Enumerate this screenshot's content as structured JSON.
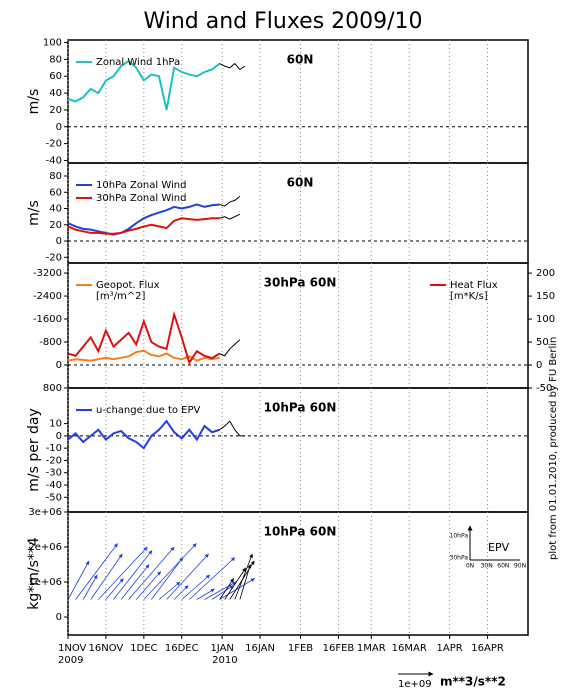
{
  "title": "Wind and Fluxes 2009/10",
  "footnote": "plot from 01.01.2010, produced by FU Berlin",
  "xaxis": {
    "xlim": [
      0,
      182
    ],
    "xticks": [
      {
        "value": 0,
        "label": "1NOV"
      },
      {
        "value": 15,
        "label": "16NOV"
      },
      {
        "value": 30,
        "label": "1DEC"
      },
      {
        "value": 45,
        "label": "16DEC"
      },
      {
        "value": 61,
        "label": "1JAN"
      },
      {
        "value": 76,
        "label": "16JAN"
      },
      {
        "value": 92,
        "label": "1FEB"
      },
      {
        "value": 107,
        "label": "16FEB"
      },
      {
        "value": 120,
        "label": "1MAR"
      },
      {
        "value": 135,
        "label": "16MAR"
      },
      {
        "value": 151,
        "label": "1APR"
      },
      {
        "value": 166,
        "label": "16APR"
      }
    ],
    "year_labels": [
      {
        "value": 0,
        "label": "2009"
      },
      {
        "value": 61,
        "label": "2010"
      }
    ]
  },
  "chart_data": [
    {
      "type": "line",
      "label": "60N",
      "ylabel": "m/s",
      "ylim": [
        -43,
        103
      ],
      "yticks": [
        -40,
        -20,
        0,
        20,
        40,
        60,
        80,
        100
      ],
      "zero_line": true,
      "series": [
        {
          "name": "Zonal Wind 1hPa",
          "color": "#20c0c0",
          "x": [
            0,
            3,
            6,
            9,
            12,
            15,
            18,
            21,
            24,
            27,
            30,
            33,
            36,
            39,
            42,
            45,
            48,
            51,
            54,
            57,
            60
          ],
          "values": [
            33,
            30,
            35,
            45,
            40,
            55,
            60,
            72,
            78,
            70,
            55,
            62,
            60,
            20,
            70,
            65,
            62,
            60,
            65,
            68,
            75
          ]
        },
        {
          "color": "#000000",
          "x": [
            60,
            62,
            64,
            66,
            68,
            70
          ],
          "values": [
            75,
            72,
            70,
            75,
            68,
            72
          ]
        }
      ]
    },
    {
      "type": "line",
      "label": "60N",
      "ylabel": "m/s",
      "ylim": [
        -27,
        96
      ],
      "yticks": [
        -20,
        0,
        20,
        40,
        60,
        80
      ],
      "zero_line": true,
      "series": [
        {
          "name": "10hPa Zonal Wind",
          "color": "#2040e0",
          "x": [
            0,
            3,
            6,
            9,
            12,
            15,
            18,
            21,
            24,
            27,
            30,
            33,
            36,
            39,
            42,
            45,
            48,
            51,
            54,
            57,
            60
          ],
          "values": [
            22,
            18,
            15,
            14,
            12,
            10,
            8,
            10,
            15,
            22,
            28,
            32,
            35,
            38,
            42,
            40,
            42,
            45,
            42,
            44,
            45
          ]
        },
        {
          "name": "30hPa Zonal Wind",
          "color": "#e01010",
          "x": [
            0,
            3,
            6,
            9,
            12,
            15,
            18,
            21,
            24,
            27,
            30,
            33,
            36,
            39,
            42,
            45,
            48,
            51,
            54,
            57,
            60
          ],
          "values": [
            18,
            14,
            12,
            10,
            10,
            9,
            9,
            10,
            13,
            15,
            18,
            20,
            18,
            16,
            25,
            28,
            27,
            26,
            27,
            28,
            28
          ]
        },
        {
          "color": "#000000",
          "x": [
            60,
            62,
            64,
            66,
            68
          ],
          "values": [
            45,
            43,
            48,
            50,
            55
          ]
        },
        {
          "color": "#000000",
          "x": [
            60,
            62,
            64,
            66,
            68
          ],
          "values": [
            28,
            30,
            27,
            30,
            33
          ]
        }
      ]
    },
    {
      "type": "line",
      "label": "30hPa 60N",
      "ylim": [
        800,
        -3550
      ],
      "yticks": [
        800,
        0,
        -800,
        -1600,
        -2400,
        -3200
      ],
      "y2lim": [
        -50,
        222
      ],
      "y2ticks": [
        -50,
        0,
        50,
        100,
        150,
        200
      ],
      "zero_line": true,
      "series": [
        {
          "name": "Geopot. Flux",
          "units": "[m³/m^2]",
          "color": "#f08020",
          "x": [
            0,
            3,
            6,
            9,
            12,
            15,
            18,
            21,
            24,
            27,
            30,
            33,
            36,
            39,
            42,
            45,
            48,
            51,
            54,
            57,
            60
          ],
          "values": [
            -150,
            -200,
            -180,
            -150,
            -200,
            -250,
            -200,
            -250,
            -300,
            -450,
            -500,
            -350,
            -300,
            -400,
            -250,
            -200,
            -300,
            -150,
            -250,
            -200,
            -250
          ]
        },
        {
          "name": "Heat Flux",
          "units": "[m*K/s]",
          "axis": "y2",
          "color": "#e01010",
          "x": [
            0,
            3,
            6,
            9,
            12,
            15,
            18,
            21,
            24,
            27,
            30,
            33,
            36,
            39,
            42,
            45,
            48,
            51,
            54,
            57,
            60
          ],
          "values": [
            25,
            20,
            40,
            60,
            30,
            75,
            40,
            55,
            70,
            45,
            95,
            50,
            40,
            35,
            110,
            60,
            5,
            30,
            20,
            15,
            25
          ]
        },
        {
          "axis": "y2",
          "color": "#000000",
          "x": [
            60,
            62,
            64,
            66,
            68
          ],
          "values": [
            25,
            20,
            35,
            45,
            55
          ]
        }
      ]
    },
    {
      "type": "line",
      "label": "10hPa 60N",
      "ylabel": "m/s per day",
      "ylim": [
        -62,
        39
      ],
      "yticks": [
        -50,
        -40,
        -30,
        -20,
        -10,
        0,
        10
      ],
      "zero_line": true,
      "series": [
        {
          "name": "u-change due to EPV",
          "color": "#2040e0",
          "x": [
            0,
            3,
            6,
            9,
            12,
            15,
            18,
            21,
            24,
            27,
            30,
            33,
            36,
            39,
            42,
            45,
            48,
            51,
            54,
            57,
            60
          ],
          "values": [
            -3,
            2,
            -5,
            0,
            5,
            -3,
            2,
            4,
            -2,
            -5,
            -10,
            0,
            5,
            12,
            3,
            -2,
            5,
            -3,
            8,
            3,
            5
          ]
        },
        {
          "color": "#000000",
          "x": [
            60,
            62,
            64,
            66,
            68,
            70
          ],
          "values": [
            5,
            8,
            12,
            5,
            0,
            0
          ]
        }
      ]
    },
    {
      "type": "vector",
      "label": "10hPa 60N",
      "ylabel": "kg*m/s**4",
      "ylim": [
        -514286,
        3000000
      ],
      "yticks": [
        0,
        {
          "value": 1000000,
          "label": "1e+06"
        },
        {
          "value": 2000000,
          "label": "2e+06"
        },
        {
          "value": 3000000,
          "label": "3e+06"
        }
      ],
      "origin_y": 500000,
      "series": [
        {
          "color": "#2040e0",
          "x": [
            0,
            3,
            6,
            9,
            12,
            15,
            18,
            21,
            24,
            27,
            30,
            33,
            36,
            39,
            42,
            45,
            48,
            51,
            54,
            57,
            60
          ],
          "fy": [
            600000000.0,
            1200000000.0,
            400000000.0,
            900000000.0,
            1400000000.0,
            500000000.0,
            1100000000.0,
            800000000.0,
            1300000000.0,
            700000000.0,
            1500000000.0,
            900000000.0,
            600000000.0,
            1200000000.0,
            400000000.0,
            800000000.0,
            1300000000.0,
            500000000.0,
            900000000.0,
            600000000.0,
            1000000000.0
          ],
          "fz": [
            1100000.0,
            1600000.0,
            700000.0,
            1300000.0,
            1500000.0,
            600000.0,
            1400000.0,
            1000000.0,
            1500000.0,
            800000.0,
            1600000.0,
            1200000.0,
            500000.0,
            1300000.0,
            400000.0,
            700000.0,
            1200000.0,
            300000.0,
            500000.0,
            400000.0,
            600000.0
          ]
        },
        {
          "color": "#000000",
          "x": [
            60,
            62,
            64,
            66,
            68
          ],
          "fy": [
            400000000.0,
            600000000.0,
            700000000.0,
            500000000.0,
            300000000.0
          ],
          "fz": [
            600000.0,
            900000.0,
            1100000.0,
            1300000.0,
            1000000.0
          ]
        }
      ],
      "reference": {
        "value": 1000000000,
        "label": "1e+09",
        "units": "m**3/s**2"
      },
      "inset": {
        "title": "EPV",
        "ylabels": [
          "10hPa",
          "30hPa"
        ],
        "xlabels": [
          "0N",
          "30N",
          "60N",
          "90N"
        ]
      }
    }
  ]
}
